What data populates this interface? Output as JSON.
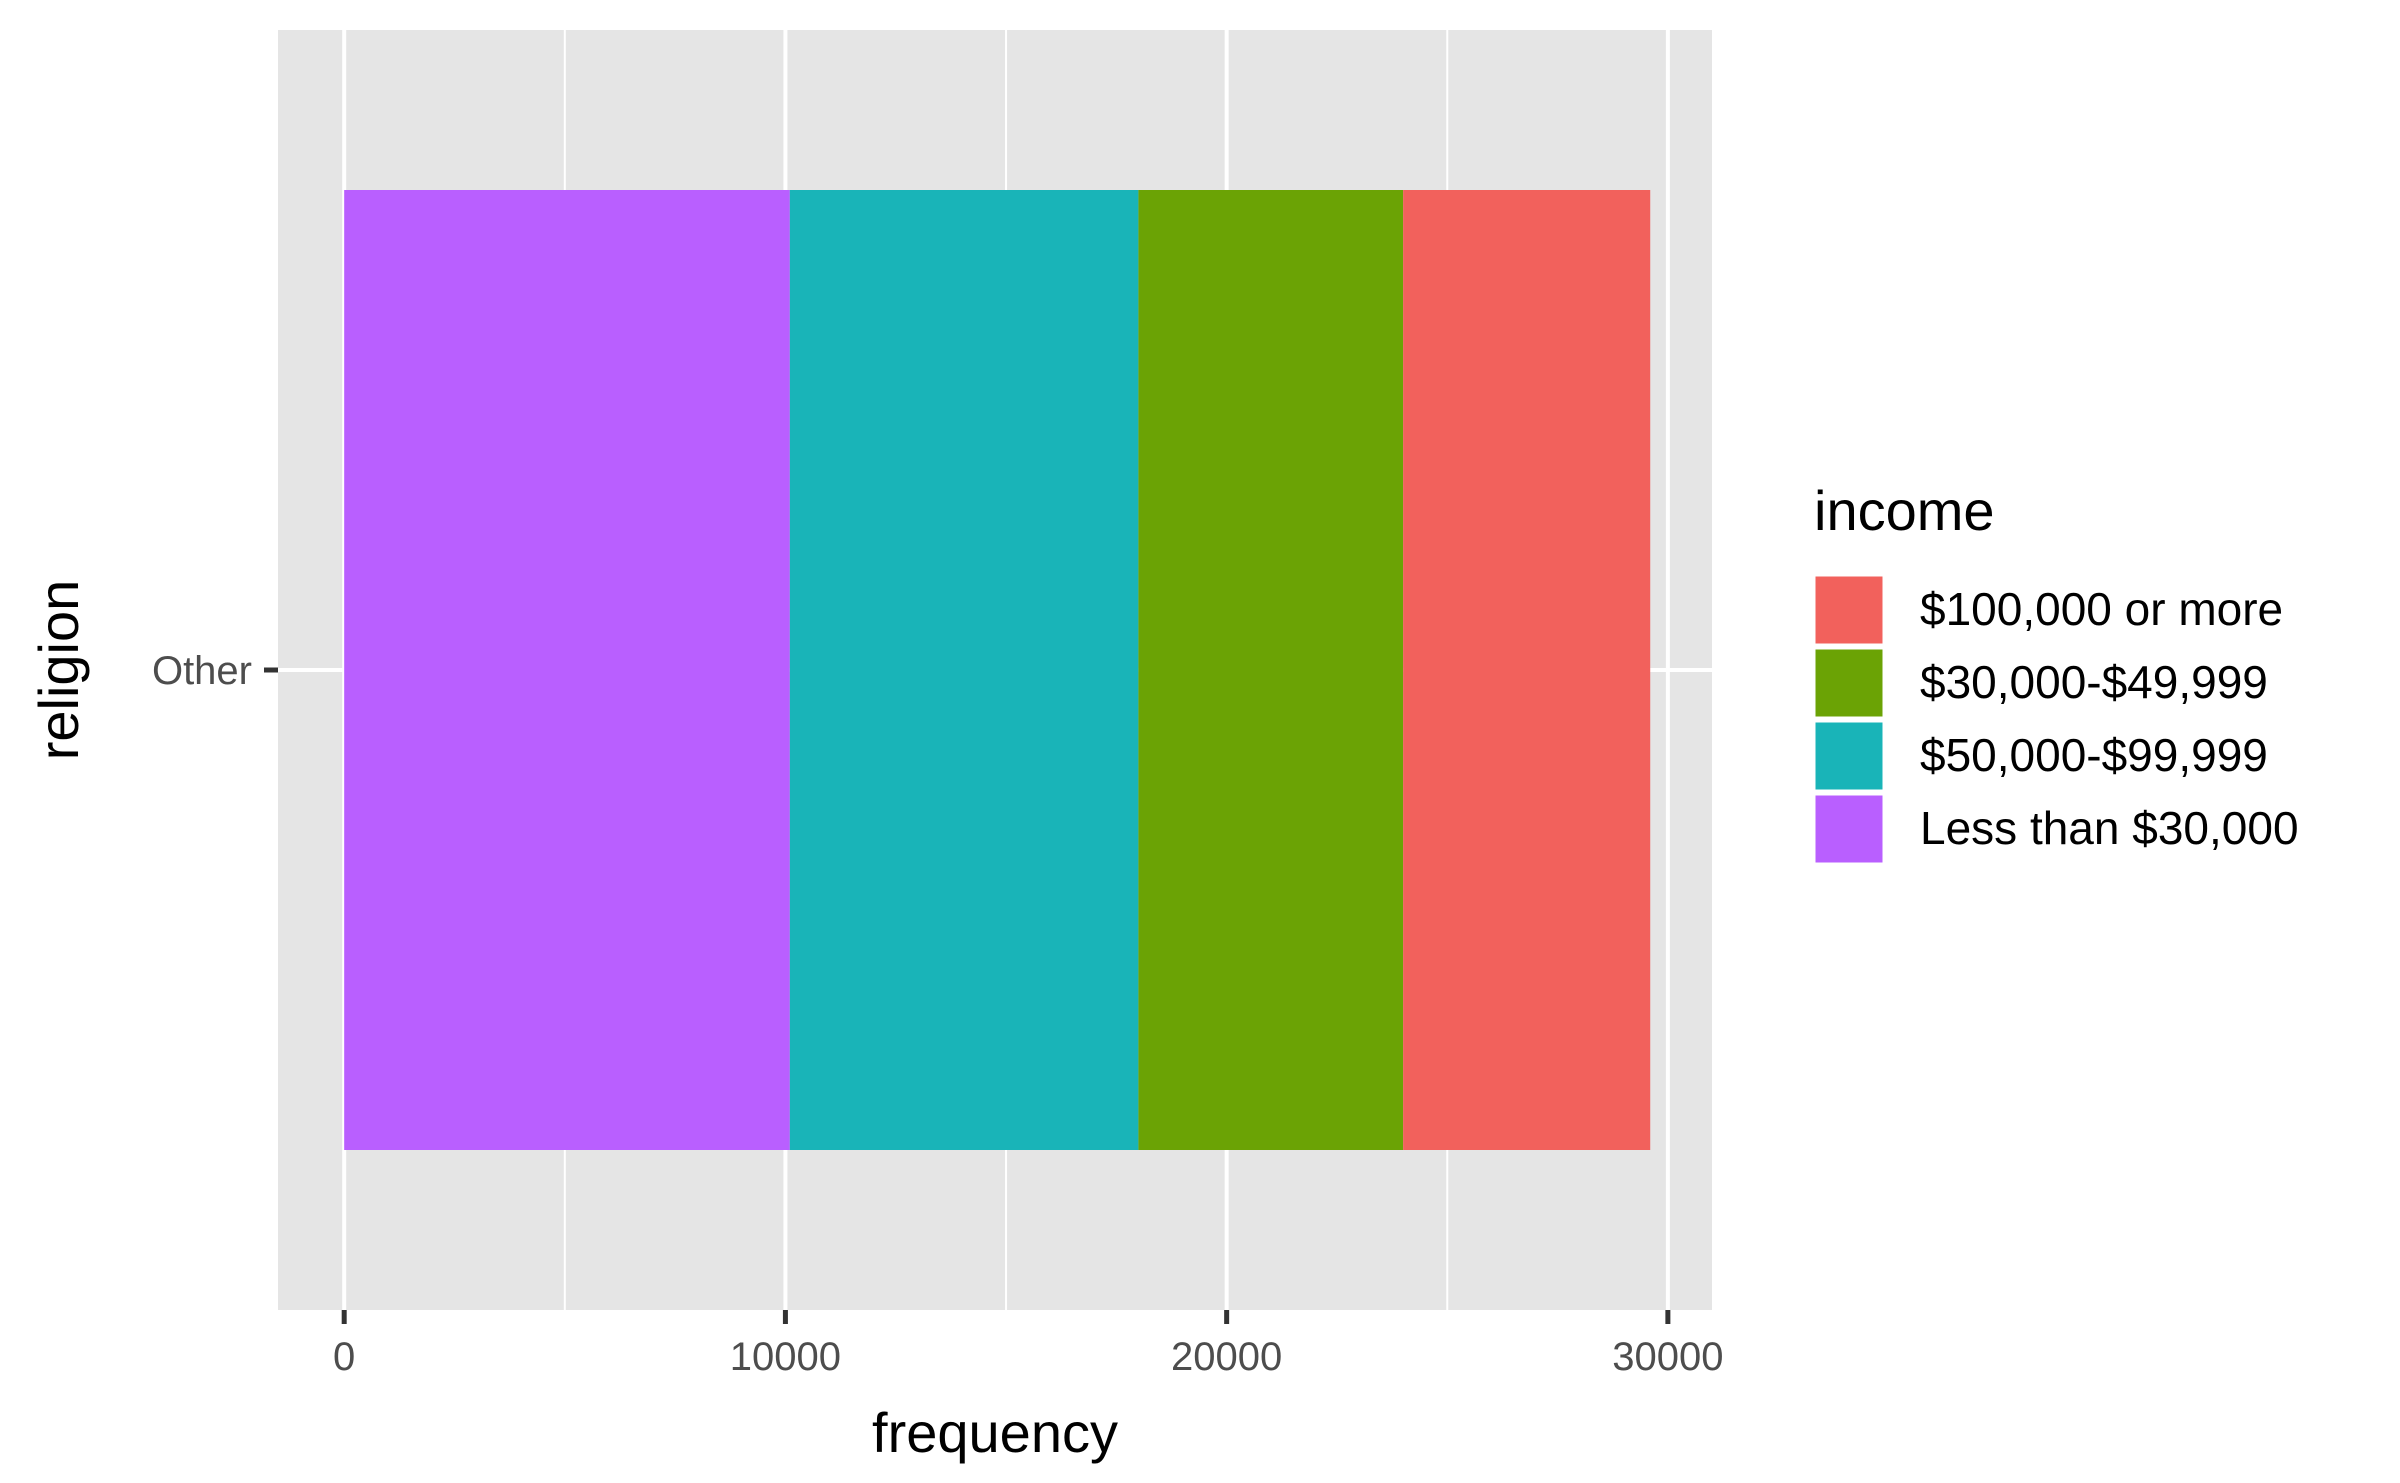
{
  "chart_data": {
    "type": "bar",
    "orientation": "horizontal",
    "stacked": true,
    "categories": [
      "Other"
    ],
    "series": [
      {
        "name": "Less than $30,000",
        "values": [
          10100
        ],
        "color": "#B95FFF"
      },
      {
        "name": "$50,000-$99,999",
        "values": [
          7900
        ],
        "color": "#19B4B8"
      },
      {
        "name": "$30,000-$49,999",
        "values": [
          6000
        ],
        "color": "#6BA305"
      },
      {
        "name": "$100,000 or more",
        "values": [
          5600
        ],
        "color": "#F2615C"
      }
    ],
    "legend_order": [
      "$100,000 or more",
      "$30,000-$49,999",
      "$50,000-$99,999",
      "Less than $30,000"
    ],
    "title": "",
    "xlabel": "frequency",
    "ylabel": "religion",
    "xlim": [
      -1500,
      31000
    ],
    "xticks": [
      0,
      10000,
      20000,
      30000
    ],
    "xtick_labels": [
      "0",
      "10000",
      "20000",
      "30000"
    ],
    "grid": true,
    "legend_title": "income",
    "legend_position": "right",
    "panel_color": "#E5E5E5",
    "grid_color": "#FFFFFF"
  }
}
